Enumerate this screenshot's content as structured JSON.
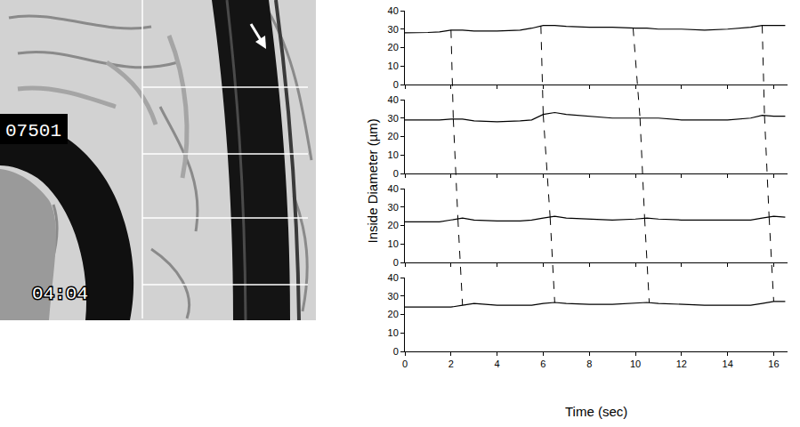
{
  "micrograph": {
    "labels": [
      "07501",
      "04:04"
    ]
  },
  "ylabel": "Inside Diameter (µm)",
  "xlabel": "Time (sec)",
  "chart_data": [
    {
      "type": "line",
      "color": "#000000",
      "line_style": "solid",
      "grid": false,
      "tick_labels": "y",
      "x": [
        0,
        0.5,
        1,
        1.5,
        2,
        2.5,
        3,
        4,
        5,
        5.5,
        6,
        6.5,
        7,
        8,
        9,
        10,
        10.5,
        11,
        12,
        13,
        14,
        15,
        15.5,
        16,
        16.5
      ],
      "values": [
        28,
        28,
        28.2,
        28.5,
        29.5,
        29.5,
        29,
        29,
        29.5,
        30.5,
        32,
        32,
        31.5,
        31,
        31,
        30.5,
        30.5,
        30,
        30,
        29.5,
        30,
        31,
        32,
        32,
        32
      ],
      "peaks": [
        2.0,
        5.9,
        9.9,
        15.5
      ],
      "xlim": [
        0,
        16.6
      ],
      "xticks": [
        0,
        2,
        4,
        6,
        8,
        10,
        12,
        14,
        16
      ],
      "ylim": [
        0,
        40
      ],
      "yticks": [
        0,
        10,
        20,
        30,
        40
      ]
    },
    {
      "type": "line",
      "color": "#000000",
      "line_style": "solid",
      "grid": false,
      "tick_labels": "y",
      "x": [
        0,
        0.5,
        1,
        1.5,
        2,
        2.5,
        3,
        4,
        5,
        5.5,
        6,
        6.5,
        7,
        8,
        9,
        10,
        10.5,
        11,
        12,
        13,
        14,
        15,
        15.5,
        16,
        16.5
      ],
      "values": [
        29,
        29,
        29,
        29,
        29.5,
        29.5,
        28.5,
        28,
        28.5,
        29,
        32,
        33,
        32,
        31,
        30,
        30,
        30,
        30,
        29,
        29,
        29,
        30,
        31.5,
        31,
        31
      ],
      "peaks": [
        2.1,
        6.0,
        10.2,
        15.6
      ],
      "xlim": [
        0,
        16.6
      ],
      "xticks": [
        0,
        2,
        4,
        6,
        8,
        10,
        12,
        14,
        16
      ],
      "ylim": [
        0,
        40
      ],
      "yticks": [
        0,
        10,
        20,
        30,
        40
      ]
    },
    {
      "type": "line",
      "color": "#000000",
      "line_style": "solid",
      "grid": false,
      "tick_labels": "y",
      "x": [
        0,
        0.5,
        1,
        1.5,
        2,
        2.5,
        3,
        4,
        5,
        5.5,
        6,
        6.5,
        7,
        8,
        9,
        10,
        10.5,
        11,
        12,
        13,
        14,
        15,
        15.5,
        16,
        16.5
      ],
      "values": [
        22,
        22,
        22,
        22,
        23,
        24,
        23,
        22.5,
        22.5,
        23,
        24,
        25,
        24,
        23.5,
        23,
        23.5,
        24,
        23.5,
        23,
        23,
        23,
        23,
        24,
        25,
        24.5
      ],
      "peaks": [
        2.3,
        6.3,
        10.4,
        15.8
      ],
      "xlim": [
        0,
        16.6
      ],
      "xticks": [
        0,
        2,
        4,
        6,
        8,
        10,
        12,
        14,
        16
      ],
      "ylim": [
        0,
        40
      ],
      "yticks": [
        0,
        10,
        20,
        30,
        40
      ]
    },
    {
      "type": "line",
      "color": "#000000",
      "line_style": "solid",
      "grid": false,
      "x": [
        0,
        0.5,
        1,
        1.5,
        2,
        2.5,
        3,
        4,
        5,
        5.5,
        6,
        6.5,
        7,
        8,
        9,
        10,
        10.5,
        11,
        12,
        13,
        14,
        15,
        15.5,
        16,
        16.5
      ],
      "values": [
        24,
        24,
        24,
        24,
        24,
        25,
        26,
        25,
        25,
        25,
        26,
        26.5,
        26,
        25.5,
        25.5,
        26,
        26.5,
        26,
        25.5,
        25,
        25,
        25,
        26,
        27,
        27
      ],
      "peaks": [
        2.5,
        6.5,
        10.6,
        16.0
      ],
      "xlim": [
        0,
        16.6
      ],
      "xticks": [
        0,
        2,
        4,
        6,
        8,
        10,
        12,
        14,
        16
      ],
      "ylim": [
        0,
        40
      ],
      "yticks": [
        0,
        10,
        20,
        30,
        40
      ]
    }
  ]
}
